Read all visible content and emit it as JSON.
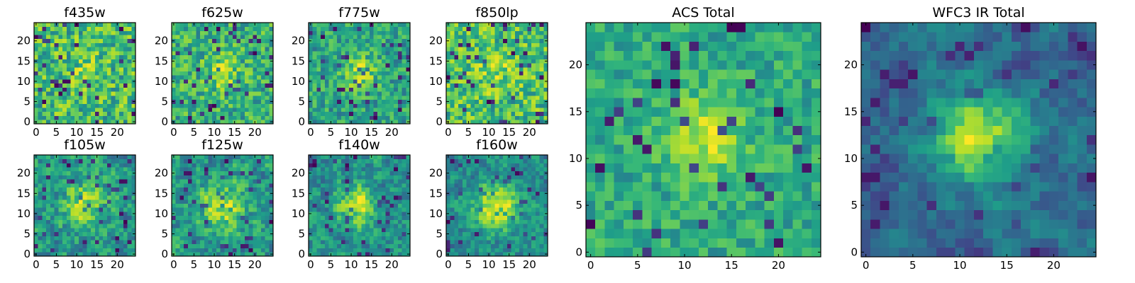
{
  "chart_data": [
    {
      "type": "heatmap",
      "title": "f435w",
      "grid_size": 25,
      "colormap": "viridis",
      "xticks": [
        0,
        5,
        10,
        15,
        20
      ],
      "yticks": [
        0,
        5,
        10,
        15,
        20
      ],
      "xlim": [
        -0.5,
        24.5
      ],
      "ylim": [
        -0.5,
        24.5
      ],
      "seed": 11,
      "noise": 0.95,
      "blob": 0.1,
      "sigma": 3.0,
      "floor": 0.45,
      "smooth": 0.0
    },
    {
      "type": "heatmap",
      "title": "f625w",
      "grid_size": 25,
      "colormap": "viridis",
      "xticks": [
        0,
        5,
        10,
        15,
        20
      ],
      "yticks": [
        0,
        5,
        10,
        15,
        20
      ],
      "xlim": [
        -0.5,
        24.5
      ],
      "ylim": [
        -0.5,
        24.5
      ],
      "seed": 23,
      "noise": 0.9,
      "blob": 0.25,
      "sigma": 3.0,
      "floor": 0.45,
      "smooth": 0.0
    },
    {
      "type": "heatmap",
      "title": "f775w",
      "grid_size": 25,
      "colormap": "viridis",
      "xticks": [
        0,
        5,
        10,
        15,
        20
      ],
      "yticks": [
        0,
        5,
        10,
        15,
        20
      ],
      "xlim": [
        -0.5,
        24.5
      ],
      "ylim": [
        -0.5,
        24.5
      ],
      "seed": 37,
      "noise": 0.9,
      "blob": 0.35,
      "sigma": 3.0,
      "floor": 0.45,
      "smooth": 0.0
    },
    {
      "type": "heatmap",
      "title": "f850lp",
      "grid_size": 25,
      "colormap": "viridis",
      "xticks": [
        0,
        5,
        10,
        15,
        20
      ],
      "yticks": [
        0,
        5,
        10,
        15,
        20
      ],
      "xlim": [
        -0.5,
        24.5
      ],
      "ylim": [
        -0.5,
        24.5
      ],
      "seed": 41,
      "noise": 0.95,
      "blob": 0.15,
      "sigma": 3.0,
      "floor": 0.45,
      "smooth": 0.0
    },
    {
      "type": "heatmap",
      "title": "f105w",
      "grid_size": 25,
      "colormap": "viridis",
      "xticks": [
        0,
        5,
        10,
        15,
        20
      ],
      "yticks": [
        0,
        5,
        10,
        15,
        20
      ],
      "xlim": [
        -0.5,
        24.5
      ],
      "ylim": [
        -0.5,
        24.5
      ],
      "seed": 53,
      "noise": 0.8,
      "blob": 0.3,
      "sigma": 3.5,
      "floor": 0.4,
      "smooth": 0.4
    },
    {
      "type": "heatmap",
      "title": "f125w",
      "grid_size": 25,
      "colormap": "viridis",
      "xticks": [
        0,
        5,
        10,
        15,
        20
      ],
      "yticks": [
        0,
        5,
        10,
        15,
        20
      ],
      "xlim": [
        -0.5,
        24.5
      ],
      "ylim": [
        -0.5,
        24.5
      ],
      "seed": 67,
      "noise": 0.8,
      "blob": 0.35,
      "sigma": 3.5,
      "floor": 0.4,
      "smooth": 0.4
    },
    {
      "type": "heatmap",
      "title": "f140w",
      "grid_size": 25,
      "colormap": "viridis",
      "xticks": [
        0,
        5,
        10,
        15,
        20
      ],
      "yticks": [
        0,
        5,
        10,
        15,
        20
      ],
      "xlim": [
        -0.5,
        24.5
      ],
      "ylim": [
        -0.5,
        24.5
      ],
      "seed": 71,
      "noise": 0.8,
      "blob": 0.35,
      "sigma": 3.5,
      "floor": 0.4,
      "smooth": 0.4
    },
    {
      "type": "heatmap",
      "title": "f160w",
      "grid_size": 25,
      "colormap": "viridis",
      "xticks": [
        0,
        5,
        10,
        15,
        20
      ],
      "yticks": [
        0,
        5,
        10,
        15,
        20
      ],
      "xlim": [
        -0.5,
        24.5
      ],
      "ylim": [
        -0.5,
        24.5
      ],
      "seed": 83,
      "noise": 0.75,
      "blob": 0.5,
      "sigma": 4.0,
      "floor": 0.4,
      "smooth": 0.4
    },
    {
      "type": "heatmap",
      "title": "ACS Total",
      "grid_size": 25,
      "colormap": "viridis",
      "xticks": [
        0,
        5,
        10,
        15,
        20
      ],
      "yticks": [
        0,
        5,
        10,
        15,
        20
      ],
      "xlim": [
        -0.5,
        24.5
      ],
      "ylim": [
        -0.5,
        24.5
      ],
      "seed": 97,
      "noise": 0.85,
      "blob": 0.4,
      "sigma": 3.0,
      "floor": 0.55,
      "smooth": 0.0
    },
    {
      "type": "heatmap",
      "title": "WFC3 IR Total",
      "grid_size": 25,
      "colormap": "viridis",
      "xticks": [
        0,
        5,
        10,
        15,
        20
      ],
      "yticks": [
        0,
        5,
        10,
        15,
        20
      ],
      "xlim": [
        -0.5,
        24.5
      ],
      "ylim": [
        -0.5,
        24.5
      ],
      "seed": 101,
      "noise": 0.7,
      "blob": 0.55,
      "sigma": 3.5,
      "floor": 0.35,
      "smooth": 0.6
    }
  ]
}
